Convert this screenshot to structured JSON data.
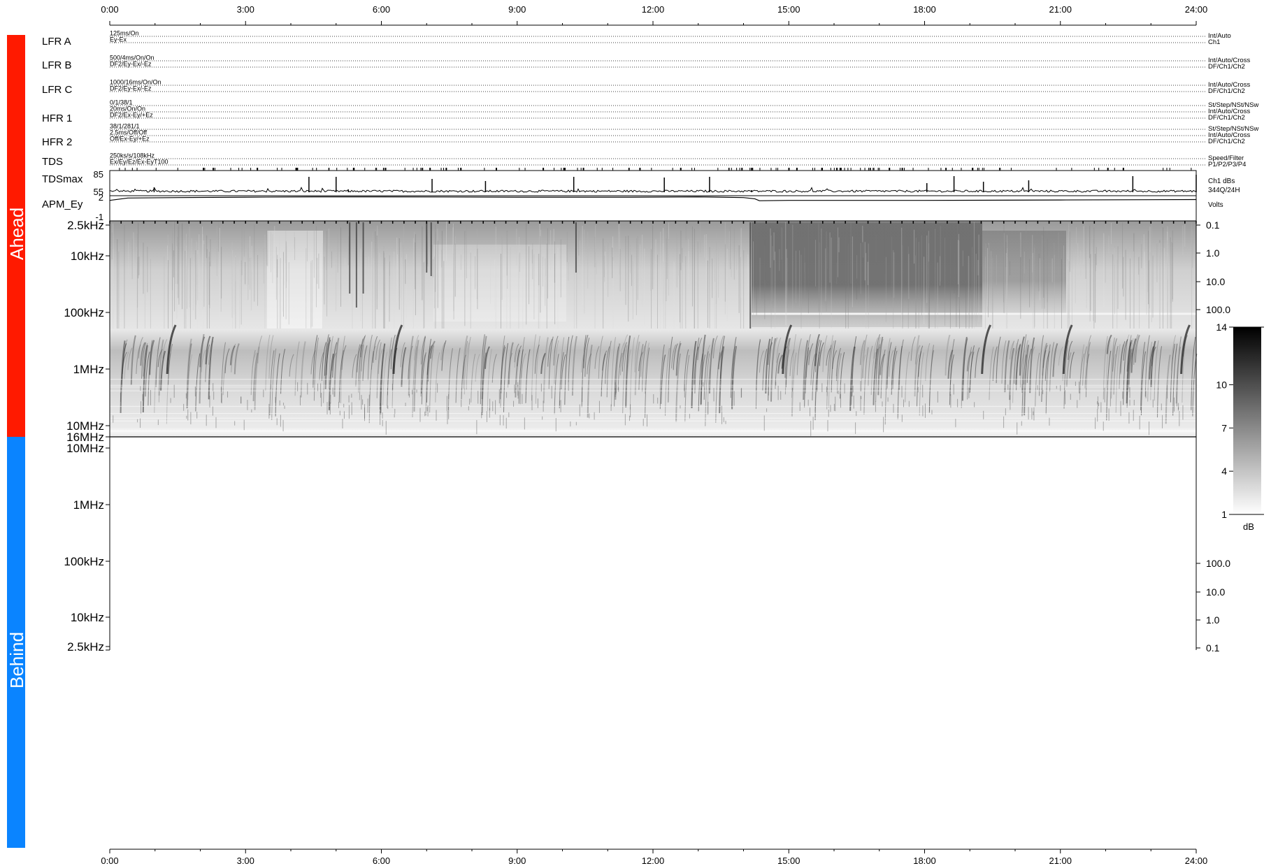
{
  "chart_data": {
    "type": "heatmap",
    "time_axis": {
      "range_hours": [
        0,
        24
      ],
      "tick_labels": [
        "0:00",
        "3:00",
        "6:00",
        "9:00",
        "12:00",
        "15:00",
        "18:00",
        "21:00",
        "24:00"
      ]
    },
    "side_labels": {
      "ahead": "Ahead",
      "behind": "Behind"
    },
    "colors": {
      "ahead": "#ff1a00",
      "behind": "#0a84ff",
      "trace": "#000000"
    },
    "instrument_rows": [
      {
        "name": "LFR A",
        "left": [
          "125ms/On",
          "Ey-Ex"
        ],
        "right": [
          "Int/Auto",
          "Ch1"
        ]
      },
      {
        "name": "LFR B",
        "left": [
          "500/4ms/On/On",
          "DF2/Ey-Ex/-Ez"
        ],
        "right": [
          "Int/Auto/Cross",
          "DF/Ch1/Ch2"
        ]
      },
      {
        "name": "LFR C",
        "left": [
          "1000/16ms/On/On",
          "DF2/Ey-Ex/-Ez"
        ],
        "right": [
          "Int/Auto/Cross",
          "DF/Ch1/Ch2"
        ]
      },
      {
        "name": "HFR 1",
        "left": [
          "0/1/38/1",
          "20ms/On/On",
          "DF2/Ex-Ey/+Ez"
        ],
        "right": [
          "St/Step/NSt/NSw",
          "Int/Auto/Cross",
          "DF/Ch1/Ch2"
        ]
      },
      {
        "name": "HFR 2",
        "left": [
          "38/1/281/1",
          "2.5ms/Off/Off",
          "Off/Ex-Ey/+Ez"
        ],
        "right": [
          "St/Step/NSt/NSw",
          "Int/Auto/Cross",
          "DF/Ch1/Ch2"
        ]
      },
      {
        "name": "TDS",
        "left": [
          "250ks/s/108kHz",
          "Ex/Ey/Ez/Ex-EyT100"
        ],
        "right": [
          "Speed/Filter",
          "P1/P2/P3/P4"
        ]
      }
    ],
    "tdsmax": {
      "name": "TDSmax",
      "y_ticks": [
        "85",
        "55"
      ],
      "ylim": [
        55,
        85
      ],
      "right_labels": [
        "Ch1 dBs",
        "344Q/24H"
      ],
      "spikes_hours": [
        0.98,
        4.4,
        5.0,
        5.27,
        7.12,
        8.3,
        10.25,
        12.25,
        13.25,
        14.18,
        18.05,
        18.65,
        19.3,
        20.3,
        22.6,
        24.0
      ],
      "spike_values": [
        64,
        79,
        79,
        61,
        76,
        73,
        79,
        78,
        79,
        60,
        70,
        80,
        72,
        74,
        80,
        82
      ]
    },
    "apm": {
      "name": "APM_Ey",
      "y_ticks": [
        "2",
        "-1"
      ],
      "ylim": [
        -1,
        2
      ],
      "right_label": "Volts",
      "x_hours": [
        0,
        0.4,
        1.5,
        3.0,
        4.5,
        6.0,
        9.0,
        11.5,
        13.0,
        14.0,
        14.25,
        14.35,
        15.0,
        18.0,
        21.0,
        24.0
      ],
      "values": [
        1.5,
        1.8,
        1.85,
        1.9,
        1.95,
        1.95,
        1.9,
        1.9,
        1.95,
        1.85,
        1.7,
        1.45,
        1.5,
        1.5,
        1.55,
        1.6
      ]
    },
    "spectrogram_ahead": {
      "left_ticks": [
        {
          "label": "2.5kHz",
          "freq_hz": 2500
        },
        {
          "label": "10kHz",
          "freq_hz": 10000
        },
        {
          "label": "100kHz",
          "freq_hz": 100000
        },
        {
          "label": "1MHz",
          "freq_hz": 1000000
        },
        {
          "label": "10MHz",
          "freq_hz": 10000000
        },
        {
          "label": "16MHz",
          "freq_hz": 16000000
        }
      ],
      "right_ticks": [
        "0.1",
        "1.0",
        "10.0",
        "100.0"
      ]
    },
    "spectrogram_behind": {
      "left_ticks": [
        {
          "label": "10MHz",
          "freq_hz": 10000000
        },
        {
          "label": "1MHz",
          "freq_hz": 1000000
        },
        {
          "label": "100kHz",
          "freq_hz": 100000
        },
        {
          "label": "10kHz",
          "freq_hz": 10000
        },
        {
          "label": "2.5kHz",
          "freq_hz": 2500
        }
      ],
      "right_ticks": [
        "100.0",
        "10.0",
        "1.0",
        "0.1"
      ]
    },
    "colorbar": {
      "label": "dB",
      "ticks": [
        "14",
        "10",
        "7",
        "4",
        "1"
      ],
      "range": [
        1,
        14
      ]
    }
  }
}
